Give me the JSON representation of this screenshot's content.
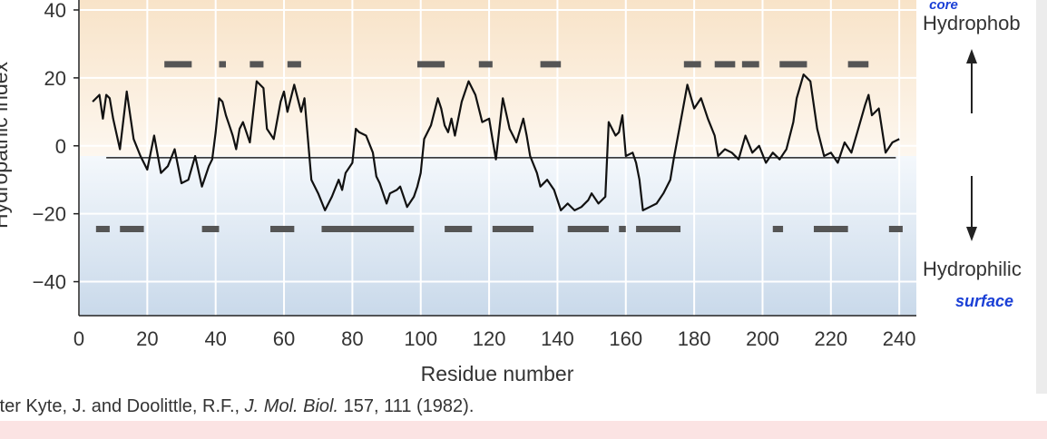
{
  "chart_data": {
    "type": "line",
    "xlabel": "Residue number",
    "ylabel": "Hydropathic index",
    "xlim": [
      0,
      245
    ],
    "ylim": [
      -50,
      44
    ],
    "xticks": [
      0,
      20,
      40,
      60,
      80,
      100,
      120,
      140,
      160,
      180,
      200,
      220,
      240
    ],
    "yticks": [
      -40,
      -20,
      0,
      20,
      40
    ],
    "grid": true,
    "baseline": -3.5,
    "baseline_range": [
      8,
      239
    ],
    "series": [
      {
        "x": [
          4,
          6,
          7,
          8,
          9,
          10,
          12,
          14,
          16,
          18,
          20,
          22,
          24,
          26,
          28,
          30,
          32,
          34,
          36,
          37,
          38,
          39,
          40,
          41,
          42,
          43,
          44,
          45,
          46,
          47,
          48,
          49,
          50,
          52,
          54,
          55,
          57,
          59,
          60,
          61,
          63,
          65,
          66,
          68,
          70,
          72,
          74,
          76,
          77,
          78,
          80,
          81,
          82,
          84,
          86,
          87,
          88,
          90,
          91,
          93,
          94,
          95,
          96,
          98,
          99,
          100,
          101,
          103,
          105,
          106,
          107,
          108,
          109,
          110,
          112,
          114,
          116,
          118,
          120,
          121,
          122,
          124,
          126,
          128,
          130,
          131,
          132,
          134,
          135,
          137,
          139,
          141,
          143,
          145,
          147,
          149,
          150,
          152,
          154,
          155,
          157,
          158,
          159,
          160,
          162,
          163,
          164,
          165,
          167,
          169,
          171,
          173,
          174,
          176,
          178,
          180,
          182,
          184,
          186,
          187,
          189,
          191,
          193,
          195,
          197,
          199,
          201,
          203,
          205,
          207,
          209,
          210,
          212,
          214,
          216,
          218,
          220,
          222,
          224,
          226,
          228,
          230,
          231,
          232,
          234,
          236,
          238,
          240
        ],
        "y": [
          13,
          15,
          8,
          15,
          14,
          8,
          -1,
          16,
          2,
          -3,
          -7,
          3,
          -8,
          -6,
          -1,
          -11,
          -10,
          -3,
          -12,
          -9,
          -6,
          -4,
          4,
          14,
          13,
          9,
          6,
          3,
          -1,
          5,
          7,
          4,
          1,
          19,
          17,
          5,
          2,
          13,
          16,
          10,
          18,
          10,
          14,
          -10,
          -14,
          -19,
          -15,
          -10,
          -13,
          -8,
          -5,
          5,
          4,
          3,
          -2,
          -9,
          -11,
          -17,
          -14,
          -13,
          -12,
          -15,
          -18,
          -15,
          -12,
          -8,
          2,
          6,
          14,
          11,
          6,
          4,
          8,
          3,
          13,
          19,
          15,
          7,
          8,
          2,
          -4,
          14,
          5,
          1,
          8,
          3,
          -3,
          -8,
          -12,
          -10,
          -13,
          -19,
          -17,
          -19,
          -18,
          -16,
          -14,
          -17,
          -15,
          7,
          3,
          4,
          9,
          -3,
          -2,
          -5,
          -10,
          -19,
          -18,
          -17,
          -14,
          -10,
          -4,
          7,
          18,
          11,
          14,
          8,
          3,
          -3,
          -1,
          -2,
          -4,
          3,
          -2,
          0,
          -5,
          -2,
          -4,
          -1,
          7,
          14,
          21,
          19,
          5,
          -3,
          -2,
          -5,
          1,
          -2,
          5,
          12,
          15,
          9,
          11,
          -2,
          1,
          2
        ]
      }
    ],
    "annotations": {
      "hydrophobic_label": "Hydrophob",
      "hydrophilic_label": "Hydrophilic",
      "hydrophobic_note": "core",
      "hydrophilic_note": "surface"
    },
    "upper_segments": [
      [
        25,
        33
      ],
      [
        41,
        43
      ],
      [
        50,
        54
      ],
      [
        61,
        65
      ],
      [
        99,
        107
      ],
      [
        117,
        121
      ],
      [
        135,
        141
      ],
      [
        177,
        182
      ],
      [
        186,
        192
      ],
      [
        194,
        199
      ],
      [
        205,
        213
      ],
      [
        225,
        231
      ]
    ],
    "lower_segments": [
      [
        5,
        9
      ],
      [
        12,
        19
      ],
      [
        36,
        41
      ],
      [
        56,
        63
      ],
      [
        71,
        98
      ],
      [
        107,
        115
      ],
      [
        121,
        133
      ],
      [
        143,
        155
      ],
      [
        158,
        160
      ],
      [
        163,
        176
      ],
      [
        203,
        206
      ],
      [
        215,
        225
      ],
      [
        237,
        241
      ]
    ]
  },
  "citation": {
    "lead": "fter Kyte, J. and Doolittle, R.F., ",
    "journal": "J. Mol. Biol.",
    "rest": " 157, 111 (1982)."
  }
}
